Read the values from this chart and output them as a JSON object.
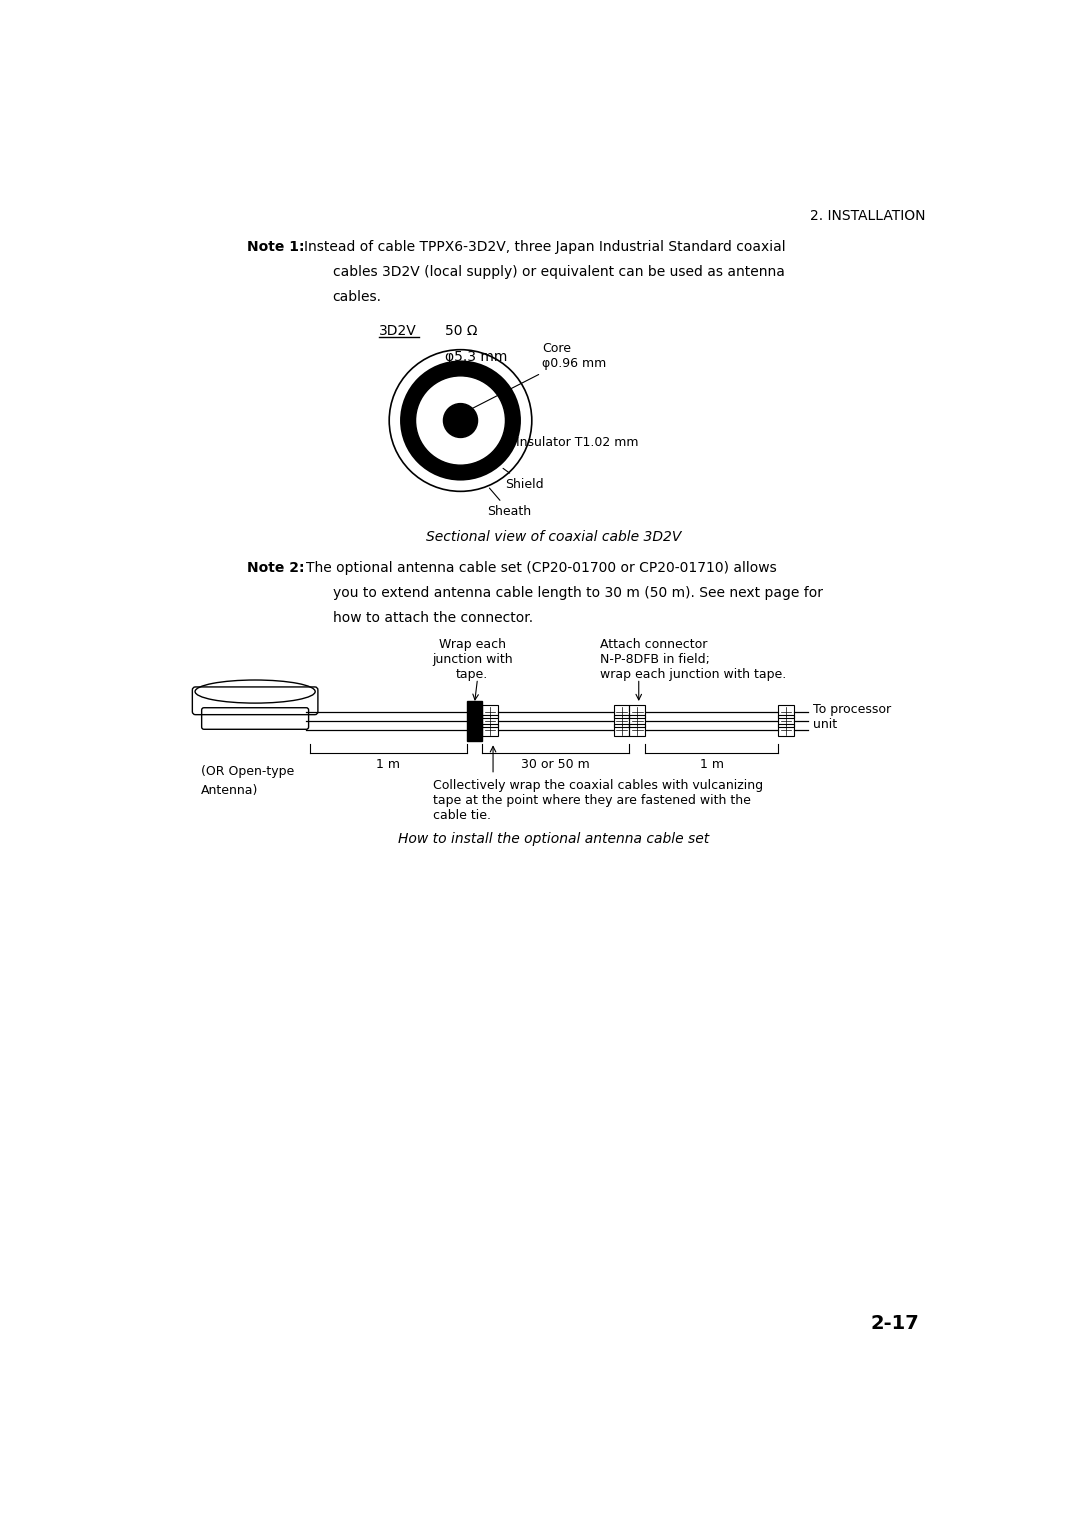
{
  "page_header": "2. INSTALLATION",
  "note1_bold": "Note 1:",
  "note1_line1": "Instead of cable TPPX6-3D2V, three Japan Industrial Standard coaxial",
  "note1_line2": "cables 3D2V (local supply) or equivalent can be used as antenna",
  "note1_line3": "cables.",
  "cable_label": "3D2V",
  "spec1": "50 Ω",
  "spec2": "φ5.3 mm",
  "label_core": "Core",
  "label_core2": "φ0.96 mm",
  "label_insulator": "Insulator T1.02 mm",
  "label_shield": "Shield",
  "label_sheath": "Sheath",
  "caption1": "Sectional view of coaxial cable 3D2V",
  "note2_bold": "Note 2:",
  "note2_line1": "The optional antenna cable set (CP20-01700 or CP20-01710) allows",
  "note2_line2": "you to extend antenna cable length to 30 m (50 m). See next page for",
  "note2_line3": "how to attach the connector.",
  "ann_wrap_line1": "Wrap each",
  "ann_wrap_line2": "junction with",
  "ann_wrap_line3": "tape.",
  "ann_connector_line1": "Attach connector",
  "ann_connector_line2": "N-P-8DFB in field;",
  "ann_connector_line3": "wrap each junction with tape.",
  "ann_processor": "To processor\nunit",
  "ann_antenna_line1": "(OR Open-type",
  "ann_antenna_line2": "Antenna)",
  "label_1m_left": "1 m",
  "label_30_50m": "30 or 50 m",
  "label_1m_right": "1 m",
  "ann_vulcanize_line1": "Collectively wrap the coaxial cables with vulcanizing",
  "ann_vulcanize_line2": "tape at the point where they are fastened with the",
  "ann_vulcanize_line3": "cable tie.",
  "caption2": "How to install the optional antenna cable set",
  "page_number": "2-17",
  "bg_color": "#ffffff",
  "text_color": "#000000"
}
